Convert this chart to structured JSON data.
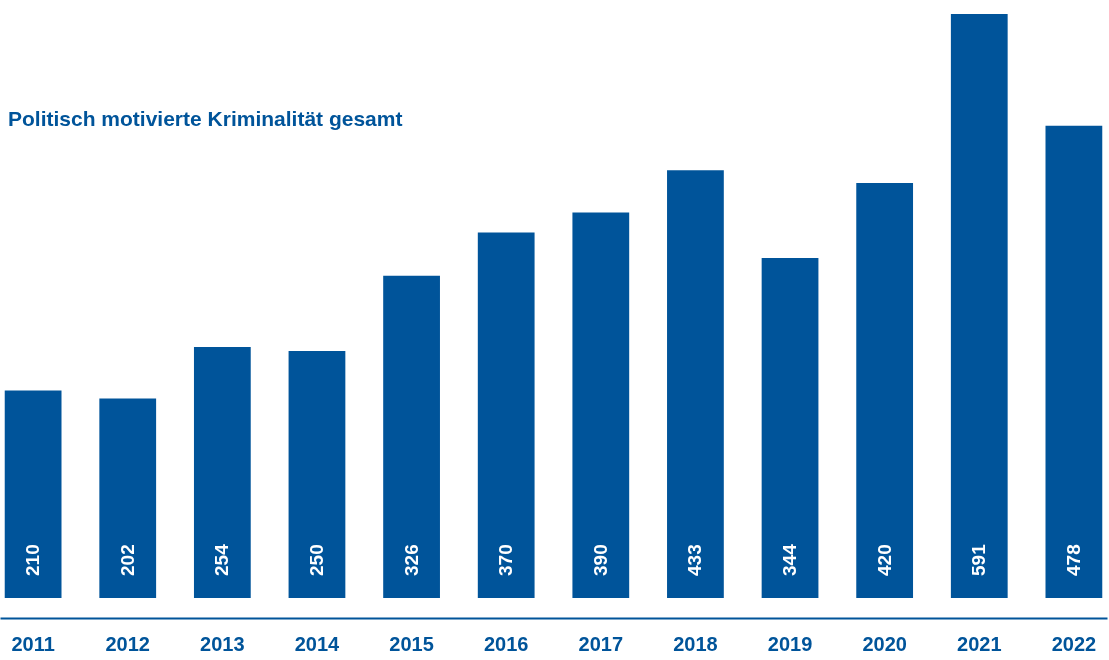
{
  "chart_data": {
    "type": "bar",
    "title": "Politisch motivierte Kriminalität gesamt",
    "categories": [
      "2011",
      "2012",
      "2013",
      "2014",
      "2015",
      "2016",
      "2017",
      "2018",
      "2019",
      "2020",
      "2021",
      "2022"
    ],
    "values": [
      210,
      202,
      254,
      250,
      326,
      370,
      390,
      433,
      344,
      420,
      591,
      478
    ],
    "color": "#00549a",
    "data_labels": true
  }
}
